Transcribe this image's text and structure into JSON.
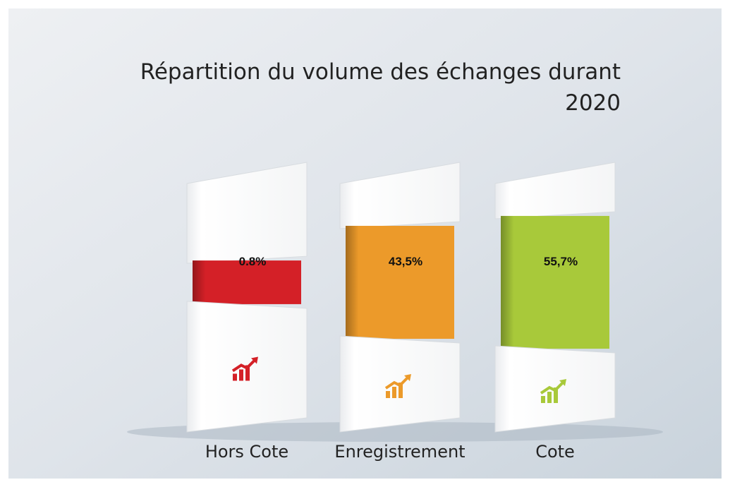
{
  "chart_data": {
    "type": "bar",
    "title": "Répartition du volume des échanges durant 2020",
    "categories": [
      "Hors Cote",
      "Enregistrement",
      "Cote"
    ],
    "values": [
      0.8,
      43.5,
      55.7
    ],
    "value_labels": [
      "0.8%",
      "43,5%",
      "55,7%"
    ],
    "colors": [
      "#d42027",
      "#ec9a2a",
      "#a8c93a"
    ]
  }
}
